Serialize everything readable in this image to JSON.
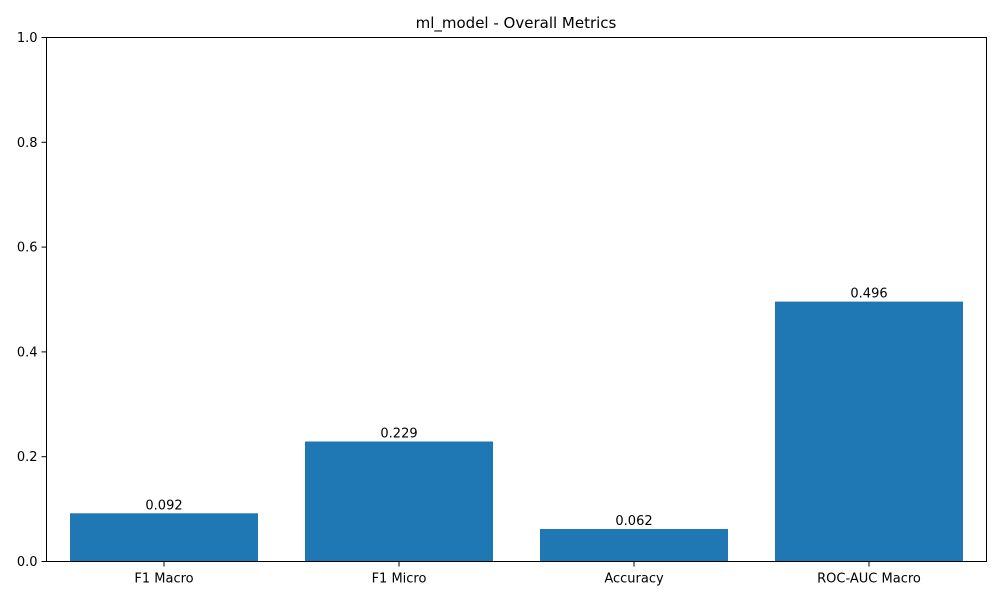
{
  "chart_data": {
    "type": "bar",
    "title": "ml_model - Overall Metrics",
    "xlabel": "",
    "ylabel": "",
    "categories": [
      "F1 Macro",
      "F1 Micro",
      "Accuracy",
      "ROC-AUC Macro"
    ],
    "values": [
      0.092,
      0.229,
      0.062,
      0.496
    ],
    "value_labels": [
      "0.092",
      "0.229",
      "0.062",
      "0.496"
    ],
    "ylim": [
      0,
      1
    ],
    "yticks": [
      0.0,
      0.2,
      0.4,
      0.6,
      0.8,
      1.0
    ],
    "ytick_labels": [
      "0.0",
      "0.2",
      "0.4",
      "0.6",
      "0.8",
      "1.0"
    ],
    "grid": false,
    "bar_color": "#1f77b4"
  }
}
